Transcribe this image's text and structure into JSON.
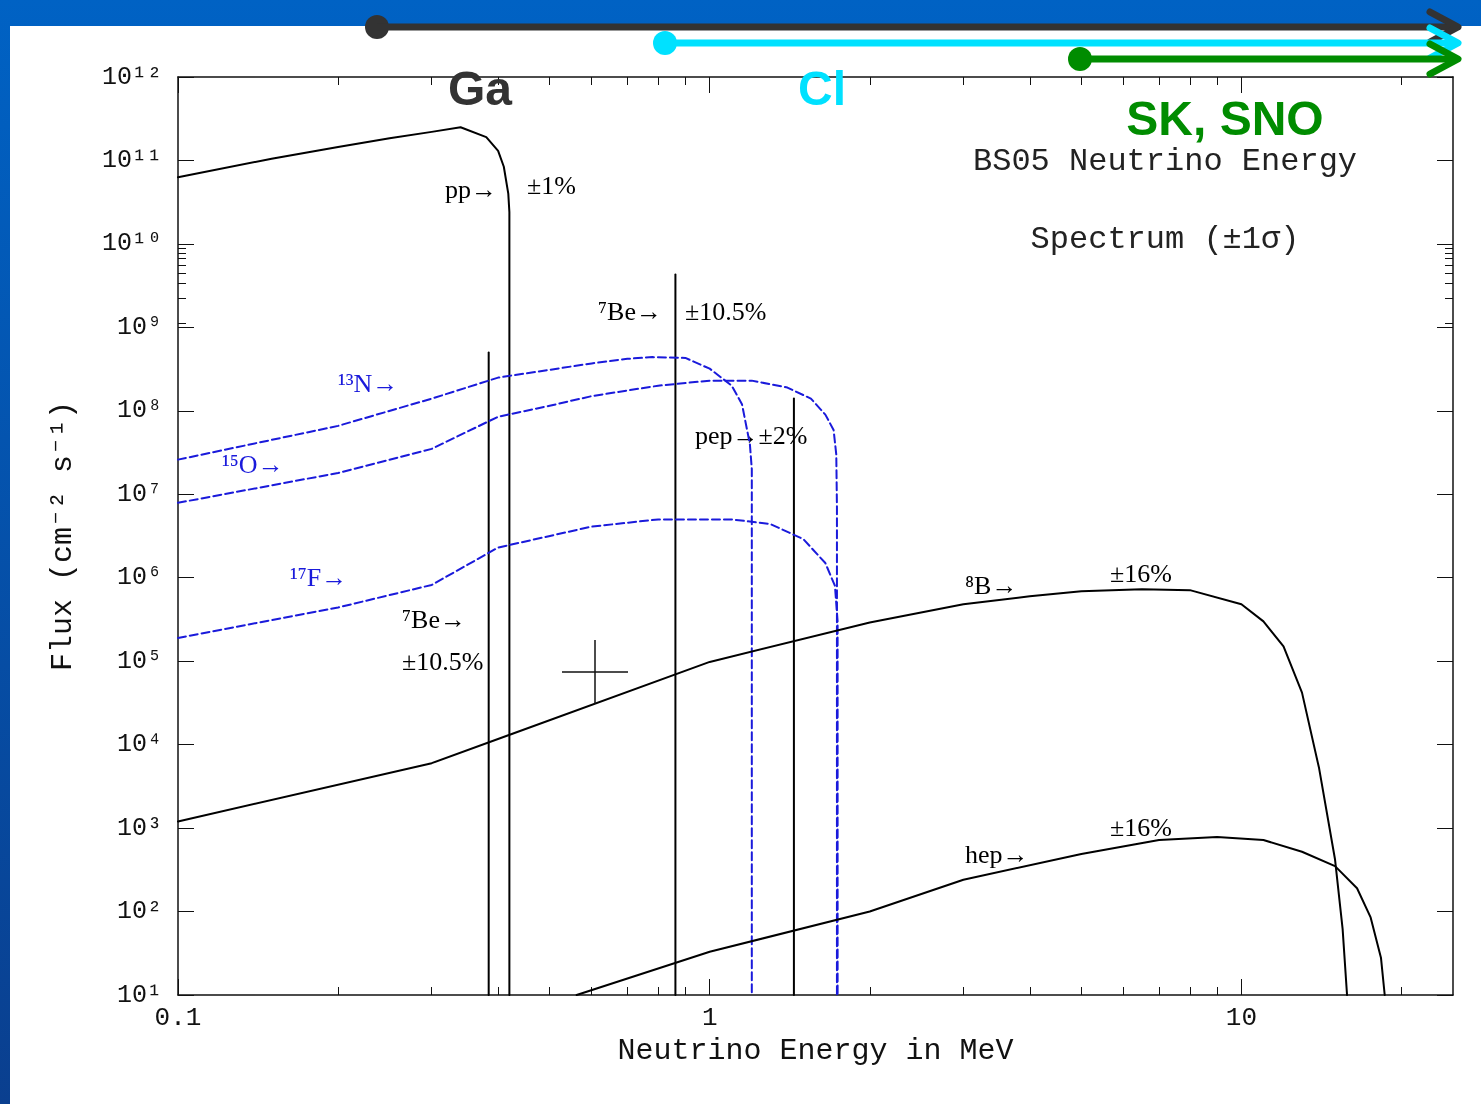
{
  "chart_data": {
    "type": "line",
    "title": "BS05 Neutrino Energy",
    "subtitle": "Spectrum (±1σ)",
    "xlabel": "Neutrino Energy in MeV",
    "ylabel": "Flux (cm⁻² s⁻¹)",
    "log": "xy",
    "xlim": [
      0.1,
      25
    ],
    "ylim": [
      10,
      1000000000000.0
    ],
    "xticks": [
      0.1,
      1,
      10
    ],
    "yticks": [
      {
        "value": 10,
        "label": "10¹"
      },
      {
        "value": 100,
        "label": "10²"
      },
      {
        "value": 1000,
        "label": "10³"
      },
      {
        "value": 10000,
        "label": "10⁴"
      },
      {
        "value": 100000,
        "label": "10⁵"
      },
      {
        "value": 1000000,
        "label": "10⁶"
      },
      {
        "value": 10000000,
        "label": "10⁷"
      },
      {
        "value": 100000000,
        "label": "10⁸"
      },
      {
        "value": 1000000000,
        "label": "10⁹"
      },
      {
        "value": 10000000000,
        "label": "10¹⁰"
      },
      {
        "value": 100000000000,
        "label": "10¹¹"
      },
      {
        "value": 1000000000000,
        "label": "10¹²"
      }
    ],
    "marker": "none",
    "series": [
      {
        "color": "#000000",
        "x": [
          0.1,
          0.15,
          0.2,
          0.25,
          0.3,
          0.34,
          0.38,
          0.4,
          0.41,
          0.418,
          0.42,
          0.42
        ],
        "values": [
          63000000000.0,
          105000000000.0,
          145000000000.0,
          185000000000.0,
          220000000000.0,
          250000000000.0,
          190000000000.0,
          130000000000.0,
          84000000000.0,
          40000000000.0,
          24000000000.0,
          10
        ]
      },
      {
        "color": "#000000",
        "x": [
          0.384,
          0.384
        ],
        "values": [
          10,
          500000000.0
        ]
      },
      {
        "color": "#000000",
        "x": [
          0.862,
          0.862
        ],
        "values": [
          10,
          4300000000.0
        ]
      },
      {
        "color": "#000000",
        "x": [
          1.44,
          1.44
        ],
        "values": [
          10,
          140000000.0
        ]
      },
      {
        "color": "#1a1adb",
        "line_style": "dashed",
        "x": [
          0.1,
          0.2,
          0.3,
          0.4,
          0.5,
          0.6,
          0.7,
          0.78,
          0.9,
          1.0,
          1.1,
          1.15,
          1.19,
          1.2,
          1.2
        ],
        "values": [
          26000000.0,
          66000000.0,
          140000000.0,
          250000000.0,
          310000000.0,
          370000000.0,
          420000000.0,
          440000000.0,
          430000000.0,
          320000000.0,
          200000000.0,
          120000000.0,
          40000000.0,
          20000000.0,
          10
        ]
      },
      {
        "color": "#1a1adb",
        "line_style": "dashed",
        "x": [
          0.1,
          0.2,
          0.3,
          0.4,
          0.5,
          0.6,
          0.8,
          1.0,
          1.2,
          1.4,
          1.55,
          1.65,
          1.71,
          1.73,
          1.735,
          1.735
        ],
        "values": [
          7900000.0,
          18000000.0,
          35000000.0,
          85000000.0,
          115000000.0,
          150000000.0,
          200000000.0,
          230000000.0,
          230000000.0,
          190000000.0,
          140000000.0,
          90000000.0,
          59000000.0,
          30000000.0,
          7000000.0,
          10
        ]
      },
      {
        "color": "#1a1adb",
        "line_style": "dashed",
        "x": [
          0.1,
          0.2,
          0.3,
          0.4,
          0.6,
          0.8,
          1.1,
          1.3,
          1.5,
          1.65,
          1.72,
          1.74,
          1.74
        ],
        "values": [
          190000.0,
          440000.0,
          820000.0,
          2300000.0,
          4100000.0,
          5000000.0,
          5000000.0,
          4400000.0,
          2900000.0,
          1500000.0,
          800000.0,
          300000.0,
          10
        ]
      },
      {
        "color": "#000000",
        "x": [
          0.1,
          0.3,
          1,
          2,
          3,
          4,
          5,
          6.5,
          8,
          10,
          11,
          12,
          13,
          14,
          15,
          15.5,
          15.8
        ],
        "values": [
          1200.0,
          6000.0,
          98000.0,
          290000.0,
          480000.0,
          600000.0,
          690000.0,
          730000.0,
          710000.0,
          480000.0,
          300000.0,
          150000.0,
          42000.0,
          5200.0,
          420.0,
          62,
          10
        ]
      },
      {
        "color": "#000000",
        "x": [
          0.562,
          1,
          2,
          3,
          5,
          7,
          9,
          11,
          13,
          15,
          16.5,
          17.5,
          18.3,
          18.6
        ],
        "values": [
          10,
          33,
          100,
          240,
          490,
          720,
          780,
          720,
          520,
          350,
          190,
          85,
          28,
          10
        ]
      }
    ],
    "annotations": [
      "Ga",
      "Cl",
      "SK, SNO",
      "pp→",
      "±1%",
      "⁷Be→",
      "±10.5%",
      "¹³N→",
      "¹⁵O→",
      "¹⁷F→",
      "⁷Be→",
      "±10.5%",
      "pep→±2%",
      "⁸B→",
      "±16%",
      "hep→",
      "±16%"
    ]
  }
}
